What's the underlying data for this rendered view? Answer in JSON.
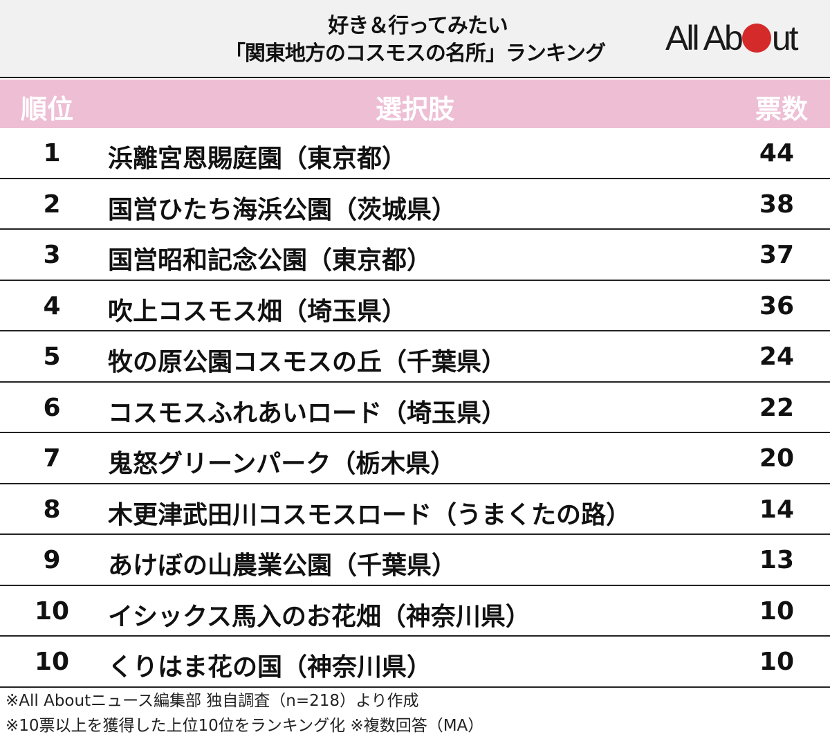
{
  "title": {
    "line1": "好き＆行ってみたい",
    "line2": "「関東地方のコスモスの名所」ランキング"
  },
  "logo": {
    "text_before": "All Ab",
    "text_after": "ut",
    "dot_color": "#d42a2a"
  },
  "table": {
    "headers": {
      "rank": "順位",
      "choice": "選択肢",
      "votes": "票数"
    },
    "header_color": "#edbed4",
    "rows": [
      {
        "rank": "1",
        "choice": "浜離宮恩賜庭園（東京都）",
        "votes": "44"
      },
      {
        "rank": "2",
        "choice": "国営ひたち海浜公園（茨城県）",
        "votes": "38"
      },
      {
        "rank": "3",
        "choice": "国営昭和記念公園（東京都）",
        "votes": "37"
      },
      {
        "rank": "4",
        "choice": "吹上コスモス畑（埼玉県）",
        "votes": "36"
      },
      {
        "rank": "5",
        "choice": "牧の原公園コスモスの丘（千葉県）",
        "votes": "24"
      },
      {
        "rank": "6",
        "choice": "コスモスふれあいロード（埼玉県）",
        "votes": "22"
      },
      {
        "rank": "7",
        "choice": "鬼怒グリーンパーク（栃木県）",
        "votes": "20"
      },
      {
        "rank": "8",
        "choice": "木更津武田川コスモスロード（うまくたの路）",
        "votes": "14"
      },
      {
        "rank": "9",
        "choice": "あけぼの山農業公園（千葉県）",
        "votes": "13"
      },
      {
        "rank": "10",
        "choice": "イシックス馬入のお花畑（神奈川県）",
        "votes": "10"
      },
      {
        "rank": "10",
        "choice": "くりはま花の国（神奈川県）",
        "votes": "10"
      }
    ]
  },
  "footer": {
    "note1": "※All Aboutニュース編集部 独自調査（n=218）より作成",
    "note2": "※10票以上を獲得した上位10位をランキング化 ※複数回答（MA）"
  }
}
